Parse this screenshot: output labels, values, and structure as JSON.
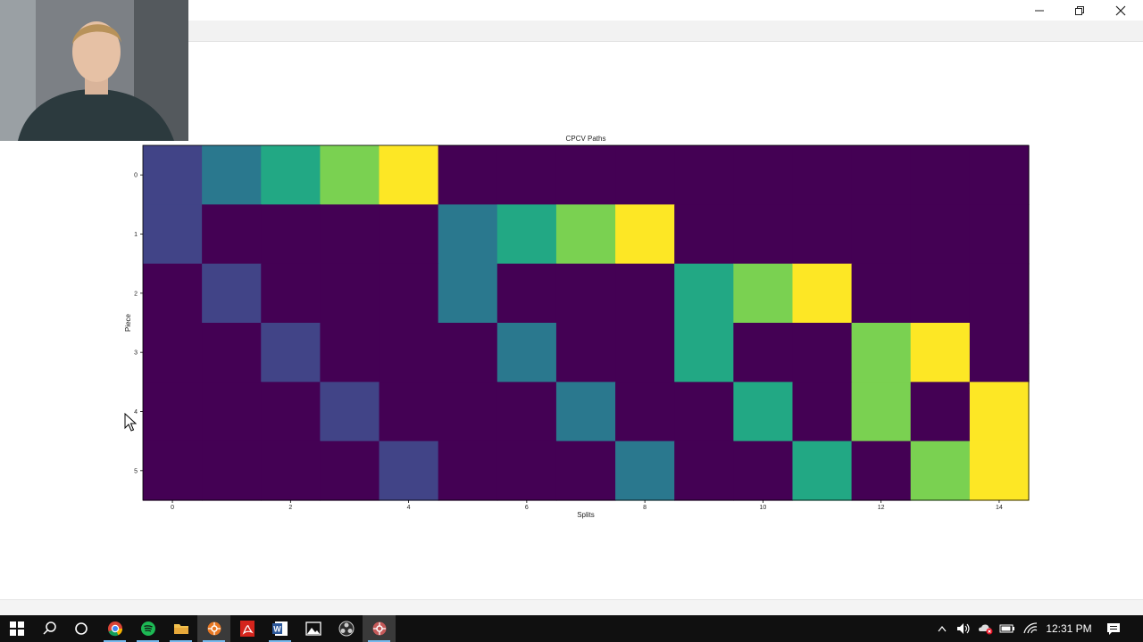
{
  "chart_data": {
    "type": "heatmap",
    "title": "CPCV Paths",
    "xlabel": "Splits",
    "ylabel": "Piece",
    "x_ticks": [
      "0",
      "2",
      "4",
      "6",
      "8",
      "10",
      "12",
      "14"
    ],
    "y_ticks": [
      "0",
      "1",
      "2",
      "3",
      "4",
      "5"
    ],
    "colormap": "viridis",
    "vmin": 0,
    "vmax": 5,
    "matrix": [
      [
        1,
        2,
        3,
        4,
        5,
        0,
        0,
        0,
        0,
        0,
        0,
        0,
        0,
        0,
        0
      ],
      [
        1,
        0,
        0,
        0,
        0,
        2,
        3,
        4,
        5,
        0,
        0,
        0,
        0,
        0,
        0
      ],
      [
        0,
        1,
        0,
        0,
        0,
        2,
        0,
        0,
        0,
        3,
        4,
        5,
        0,
        0,
        0
      ],
      [
        0,
        0,
        1,
        0,
        0,
        0,
        2,
        0,
        0,
        3,
        0,
        0,
        4,
        5,
        0
      ],
      [
        0,
        0,
        0,
        1,
        0,
        0,
        0,
        2,
        0,
        0,
        3,
        0,
        4,
        0,
        5
      ],
      [
        0,
        0,
        0,
        0,
        1,
        0,
        0,
        0,
        2,
        0,
        0,
        3,
        0,
        4,
        5
      ]
    ],
    "colors": [
      "#440154",
      "#414487",
      "#2a788e",
      "#22a884",
      "#7ad151",
      "#fde725"
    ]
  },
  "window": {
    "minimize_icon": "minimize-icon",
    "restore_icon": "restore-icon",
    "close_icon": "close-icon"
  },
  "taskbar": {
    "apps": [
      {
        "name": "start-icon"
      },
      {
        "name": "search-icon"
      },
      {
        "name": "cortana-icon"
      },
      {
        "name": "chrome-icon"
      },
      {
        "name": "spotify-icon"
      },
      {
        "name": "file-explorer-icon"
      },
      {
        "name": "app-icon-orange"
      },
      {
        "name": "acrobat-icon"
      },
      {
        "name": "word-icon"
      },
      {
        "name": "photos-icon"
      },
      {
        "name": "obs-icon"
      },
      {
        "name": "app-icon-active"
      }
    ],
    "clock": "12:31 PM"
  }
}
